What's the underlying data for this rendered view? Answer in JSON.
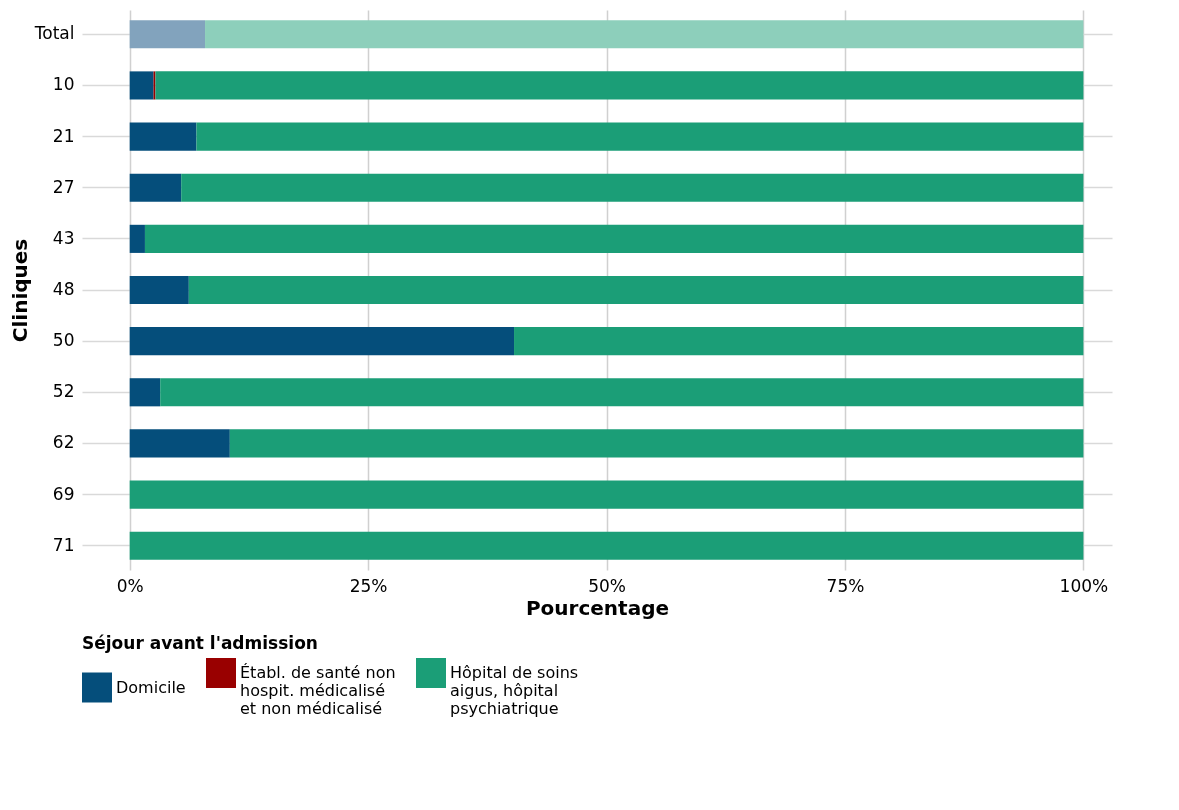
{
  "chart_data": {
    "type": "bar",
    "orientation": "horizontal",
    "stacked": true,
    "xlabel": "Pourcentage",
    "ylabel": "Cliniques",
    "legend_title": "Séjour avant l'admission",
    "legend": "bottom",
    "grid": true,
    "categories": [
      "Total",
      "10",
      "21",
      "27",
      "43",
      "48",
      "50",
      "52",
      "62",
      "69",
      "71"
    ],
    "xlim": [
      -5,
      103
    ],
    "xticks": [
      {
        "value": 0,
        "label": "0%"
      },
      {
        "value": 25,
        "label": "25%"
      },
      {
        "value": 50,
        "label": "50%"
      },
      {
        "value": 75,
        "label": "75%"
      },
      {
        "value": 100,
        "label": "100%"
      }
    ],
    "series": [
      {
        "name": "Domicile",
        "color": "#054e7b",
        "colors": [
          "#82a3bd",
          "#054e7b",
          "#054e7b",
          "#054e7b",
          "#054e7b",
          "#054e7b",
          "#054e7b",
          "#054e7b",
          "#054e7b",
          "#054e7b",
          "#054e7b"
        ],
        "values": [
          7.9,
          2.5,
          7.0,
          5.4,
          1.6,
          6.2,
          40.3,
          3.2,
          10.5,
          0,
          0
        ]
      },
      {
        "name": "Établ. de santé non hospit. médicalisé et non médicalisé",
        "color": "#990000",
        "colors": [
          "#cc7f7f",
          "#990000",
          "#990000",
          "#990000",
          "#990000",
          "#990000",
          "#990000",
          "#990000",
          "#990000",
          "#990000",
          "#990000"
        ],
        "values": [
          0,
          0.2,
          0,
          0,
          0,
          0,
          0,
          0,
          0,
          0,
          0
        ]
      },
      {
        "name": "Hôpital de soins aigus, hôpital psychiatrique",
        "color": "#1b9e77",
        "colors": [
          "#8dcfbb",
          "#1b9e77",
          "#1b9e77",
          "#1b9e77",
          "#1b9e77",
          "#1b9e77",
          "#1b9e77",
          "#1b9e77",
          "#1b9e77",
          "#1b9e77",
          "#1b9e77"
        ],
        "values": [
          92.1,
          97.3,
          93.0,
          94.6,
          98.4,
          93.8,
          59.7,
          96.8,
          89.5,
          100,
          100
        ]
      }
    ]
  }
}
